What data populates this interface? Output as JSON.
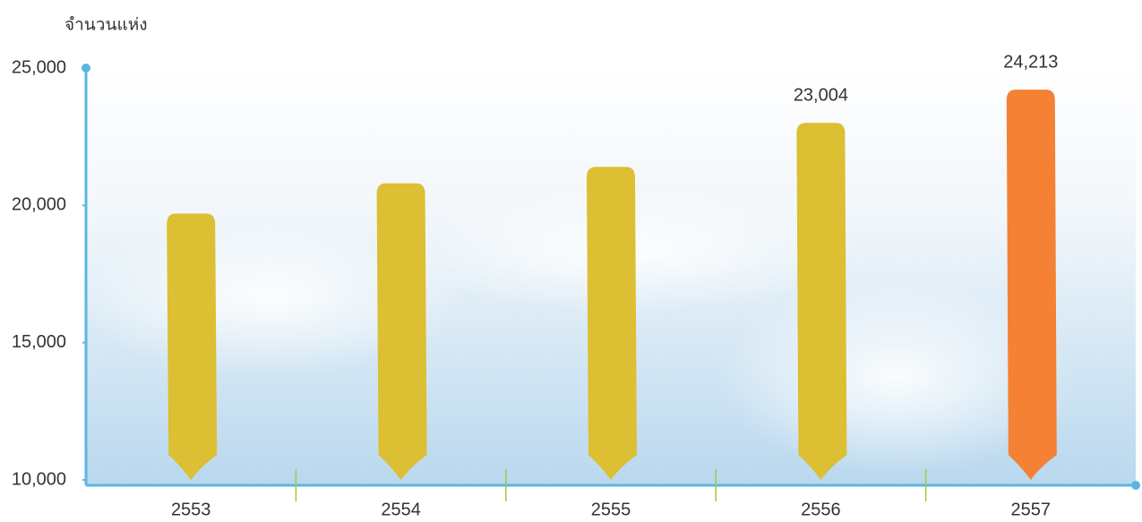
{
  "chart_data": {
    "type": "bar",
    "y_axis_title": "จำนวนแห่ง",
    "categories": [
      "2553",
      "2554",
      "2555",
      "2556",
      "2557"
    ],
    "values": [
      19700,
      20800,
      21400,
      23004,
      24213
    ],
    "value_labels": [
      null,
      null,
      null,
      "23,004",
      "24,213"
    ],
    "colors": [
      "#dcbf32",
      "#dcbf32",
      "#dcbf32",
      "#dcbf32",
      "#f48134"
    ],
    "ylim": [
      10000,
      25000
    ],
    "yticks": [
      {
        "value": 10000,
        "label": "10,000"
      },
      {
        "value": 15000,
        "label": "15,000"
      },
      {
        "value": 20000,
        "label": "20,000"
      },
      {
        "value": 25000,
        "label": "25,000"
      }
    ],
    "grid": false
  }
}
